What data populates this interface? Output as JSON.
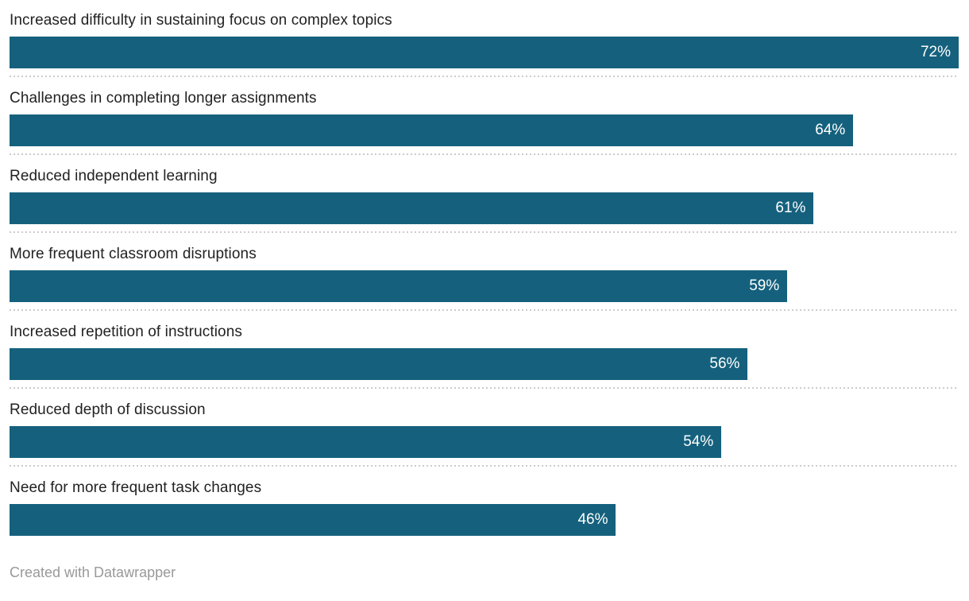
{
  "chart_data": {
    "type": "bar",
    "orientation": "horizontal",
    "title": "",
    "xlabel": "",
    "ylabel": "",
    "categories": [
      "Increased difficulty in sustaining focus on complex topics",
      "Challenges in completing longer assignments",
      "Reduced independent learning",
      "More frequent classroom disruptions",
      "Increased repetition of instructions",
      "Reduced depth of discussion",
      "Need for more frequent task changes"
    ],
    "values": [
      72,
      64,
      61,
      59,
      56,
      54,
      46
    ],
    "value_labels": [
      "72%",
      "64%",
      "61%",
      "59%",
      "56%",
      "54%",
      "46%"
    ],
    "value_suffix": "%",
    "xlim": [
      0,
      72
    ],
    "grid": false,
    "legend": "none",
    "colors": {
      "bar": "#15617d",
      "value_label": "#ffffff",
      "category_label": "#222222",
      "separator": "#cccccc",
      "footer_text": "#999999",
      "background": "#ffffff"
    }
  },
  "footer": {
    "attribution": "Created with Datawrapper"
  }
}
